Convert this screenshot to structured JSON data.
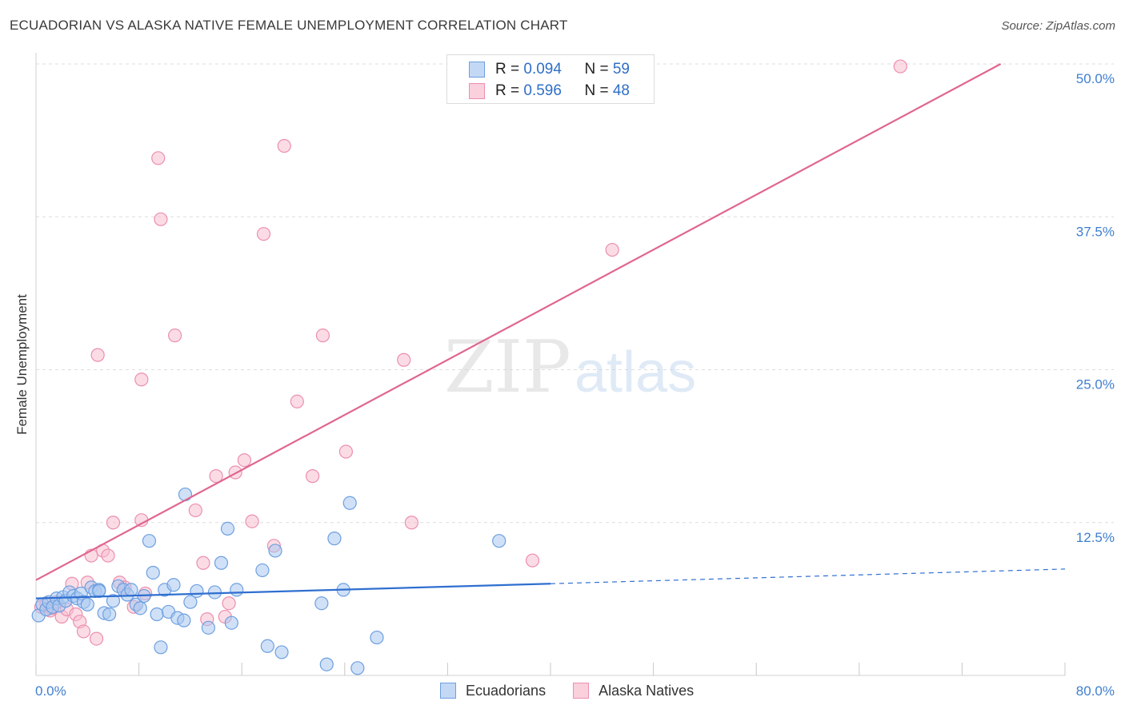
{
  "header": {
    "title": "ECUADORIAN VS ALASKA NATIVE FEMALE UNEMPLOYMENT CORRELATION CHART",
    "source": "Source: ZipAtlas.com"
  },
  "watermark": {
    "zip": "ZIP",
    "atlas": "atlas"
  },
  "legend_top": {
    "rows": [
      {
        "r_label": "R = ",
        "r_value": "0.094",
        "n_label": "N = ",
        "n_value": "59"
      },
      {
        "r_label": "R = ",
        "r_value": "0.596",
        "n_label": "N = ",
        "n_value": "48"
      }
    ]
  },
  "legend_bottom": {
    "items": [
      {
        "label": "Ecuadorians"
      },
      {
        "label": "Alaska Natives"
      }
    ]
  },
  "colors": {
    "blue_fill": "#a9c8f0",
    "blue_stroke": "#6d9fe0",
    "blue_line": "#2f6fd0",
    "pink_fill": "#f7bfd0",
    "pink_stroke": "#ec8fae",
    "pink_line": "#e06690",
    "tick_text": "#3f7fd0",
    "grid": "#dddddd"
  },
  "chart_data": {
    "type": "scatter",
    "title": "ECUADORIAN VS ALASKA NATIVE FEMALE UNEMPLOYMENT CORRELATION CHART",
    "xlabel": "",
    "ylabel": "Female Unemployment",
    "xlim": [
      0,
      80
    ],
    "ylim": [
      0,
      50
    ],
    "y_ticks": [
      12.5,
      25.0,
      37.5,
      50.0
    ],
    "y_tick_labels": [
      "12.5%",
      "25.0%",
      "37.5%",
      "50.0%"
    ],
    "x_tick_labels": [
      "0.0%",
      "80.0%"
    ],
    "grid": true,
    "legend_position": "top-center",
    "series": [
      {
        "name": "Ecuadorians",
        "r": 0.094,
        "n": 59,
        "trend": {
          "x0": 0,
          "y0": 6.3,
          "x1": 40,
          "y1": 7.5,
          "dash_to_x": 80,
          "dash_to_y": 8.7
        },
        "points": [
          [
            0.2,
            4.9
          ],
          [
            0.5,
            5.8
          ],
          [
            0.8,
            5.4
          ],
          [
            1.0,
            6.0
          ],
          [
            1.3,
            5.6
          ],
          [
            1.6,
            6.3
          ],
          [
            1.8,
            5.7
          ],
          [
            2.1,
            6.4
          ],
          [
            2.3,
            6.1
          ],
          [
            2.6,
            6.8
          ],
          [
            2.9,
            6.5
          ],
          [
            3.2,
            6.3
          ],
          [
            3.5,
            6.7
          ],
          [
            3.7,
            6.0
          ],
          [
            4.0,
            5.8
          ],
          [
            4.3,
            7.2
          ],
          [
            4.6,
            6.9
          ],
          [
            4.9,
            7.0
          ],
          [
            5.3,
            5.1
          ],
          [
            5.7,
            5.0
          ],
          [
            6.0,
            6.1
          ],
          [
            6.4,
            7.3
          ],
          [
            6.8,
            7.0
          ],
          [
            7.1,
            6.6
          ],
          [
            7.4,
            7.0
          ],
          [
            7.8,
            5.8
          ],
          [
            8.1,
            5.5
          ],
          [
            8.4,
            6.5
          ],
          [
            8.8,
            11.0
          ],
          [
            9.1,
            8.4
          ],
          [
            9.4,
            5.0
          ],
          [
            9.7,
            2.3
          ],
          [
            10.0,
            7.0
          ],
          [
            10.3,
            5.2
          ],
          [
            10.7,
            7.4
          ],
          [
            11.0,
            4.7
          ],
          [
            11.5,
            4.5
          ],
          [
            12.0,
            6.0
          ],
          [
            12.5,
            6.9
          ],
          [
            11.6,
            14.8
          ],
          [
            13.4,
            3.9
          ],
          [
            13.9,
            6.8
          ],
          [
            14.4,
            9.2
          ],
          [
            14.9,
            12.0
          ],
          [
            15.2,
            4.3
          ],
          [
            15.6,
            7.0
          ],
          [
            17.6,
            8.6
          ],
          [
            18.0,
            2.4
          ],
          [
            18.6,
            10.2
          ],
          [
            19.1,
            1.9
          ],
          [
            22.2,
            5.9
          ],
          [
            22.6,
            0.9
          ],
          [
            23.2,
            11.2
          ],
          [
            23.9,
            7.0
          ],
          [
            24.4,
            14.1
          ],
          [
            25.0,
            0.6
          ],
          [
            26.5,
            3.1
          ],
          [
            36.0,
            11.0
          ],
          [
            4.9,
            6.9
          ]
        ]
      },
      {
        "name": "Alaska Natives",
        "r": 0.596,
        "n": 48,
        "trend": {
          "x0": 0,
          "y0": 7.8,
          "x1": 75,
          "y1": 50.0
        },
        "points": [
          [
            0.4,
            5.6
          ],
          [
            0.8,
            5.9
          ],
          [
            1.1,
            5.3
          ],
          [
            1.6,
            6.0
          ],
          [
            2.0,
            4.8
          ],
          [
            2.4,
            5.4
          ],
          [
            2.8,
            7.5
          ],
          [
            3.1,
            5.0
          ],
          [
            3.4,
            4.4
          ],
          [
            3.7,
            3.6
          ],
          [
            4.0,
            7.6
          ],
          [
            4.3,
            9.8
          ],
          [
            4.7,
            3.0
          ],
          [
            5.2,
            10.2
          ],
          [
            5.6,
            9.8
          ],
          [
            6.0,
            12.5
          ],
          [
            6.5,
            7.6
          ],
          [
            6.9,
            7.2
          ],
          [
            7.6,
            5.6
          ],
          [
            8.2,
            12.7
          ],
          [
            8.5,
            6.7
          ],
          [
            9.5,
            42.3
          ],
          [
            9.7,
            37.3
          ],
          [
            4.8,
            26.2
          ],
          [
            8.2,
            24.2
          ],
          [
            10.8,
            27.8
          ],
          [
            12.4,
            13.5
          ],
          [
            13.0,
            9.2
          ],
          [
            13.3,
            4.6
          ],
          [
            14.0,
            16.3
          ],
          [
            14.7,
            4.8
          ],
          [
            15.0,
            5.9
          ],
          [
            15.5,
            16.6
          ],
          [
            16.2,
            17.6
          ],
          [
            16.8,
            12.6
          ],
          [
            17.7,
            36.1
          ],
          [
            18.5,
            10.6
          ],
          [
            19.3,
            43.3
          ],
          [
            20.3,
            22.4
          ],
          [
            21.5,
            16.3
          ],
          [
            22.3,
            27.8
          ],
          [
            24.1,
            18.3
          ],
          [
            28.6,
            25.8
          ],
          [
            29.2,
            12.5
          ],
          [
            38.6,
            9.4
          ],
          [
            44.8,
            34.8
          ],
          [
            67.2,
            49.8
          ],
          [
            1.2,
            5.5
          ]
        ]
      }
    ]
  }
}
